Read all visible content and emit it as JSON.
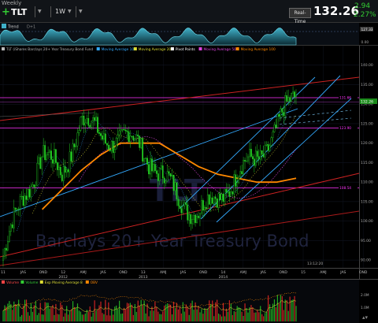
{
  "topbar": {
    "timeframe_label": "Weekly",
    "symbol": "TLT",
    "interval": "1W",
    "realtime_label": "Real-Time",
    "last_price": "132.26",
    "change": "2.94",
    "change_pct": "2.27%"
  },
  "indicator_panel": {
    "legend": "Trend",
    "legend2": "D+1",
    "axis_labels": [
      "127.33",
      "0.00"
    ]
  },
  "price_panel": {
    "legend_items": [
      {
        "text": "TLT (iShares Barclays 20+ Year Treasury Bond Fund",
        "color": "#bbbbbb"
      },
      {
        "text": "Moving Average 10",
        "color": "#33aaff"
      },
      {
        "text": "Moving Average 20",
        "color": "#dddd33"
      },
      {
        "text": "Pivot Points",
        "color": "#ffffff"
      },
      {
        "text": "Moving Average 50",
        "color": "#dd44dd"
      },
      {
        "text": "Moving Average 100",
        "color": "#ff8800"
      }
    ],
    "watermark": "Barclays 20+ Year Treasury Bond",
    "watermark_symbol": "TLT",
    "flag_label": "TLT:132.26",
    "bottom_time_label": "13:12:20",
    "y_ticks": [
      "140.00",
      "135.00",
      "130.00",
      "125.00",
      "120.00",
      "115.00",
      "110.00",
      "105.00",
      "100.00",
      "95.00",
      "90.00"
    ],
    "level_labels": [
      "131.66",
      "123.90",
      "108.54"
    ],
    "level_colors": [
      "#ff33ff",
      "#ff33ff",
      "#ff33ff"
    ]
  },
  "time_axis": {
    "ticks": [
      "11",
      "JAS",
      "OND",
      "12",
      "AMJ",
      "JAS",
      "OND",
      "13",
      "AMJ",
      "JAS",
      "OND",
      "14",
      "AMJ",
      "JAS",
      "OND",
      "15",
      "AMJ",
      "JAS",
      "OND"
    ],
    "sub": [
      "",
      "",
      "",
      "2012",
      "",
      "",
      "",
      "2013",
      "",
      "",
      "",
      "2014",
      "",
      "",
      "",
      "",
      "",
      "",
      ""
    ]
  },
  "volume_panel": {
    "legend_items": [
      {
        "text": "Volume",
        "color": "#ff4444"
      },
      {
        "text": "Volume",
        "color": "#33cc33"
      },
      {
        "text": "Exp Moving Average 8",
        "color": "#dddd33"
      },
      {
        "text": "OBV",
        "color": "#ff8800"
      }
    ],
    "axis_labels": [
      "2.0M",
      "1.0M"
    ]
  },
  "colors": {
    "up_candle": "#22cc22",
    "down_candle": "#22cc22",
    "ma10": "#33aaff",
    "ma20": "#dddd33",
    "ma50": "#dd44dd",
    "ma100": "#ff8800",
    "trend_lines": "#33aaff",
    "red_lines": "#cc2222",
    "horizontal_levels": "#ff33ff"
  },
  "chart_data": {
    "type": "line",
    "title": "TLT (iShares Barclays 20+ Year Treasury Bond Fund)",
    "xlabel": "",
    "ylabel": "",
    "ylim": [
      88,
      146
    ],
    "x": [
      "2011-06",
      "2011-09",
      "2011-12",
      "2012-03",
      "2012-06",
      "2012-09",
      "2012-12",
      "2013-03",
      "2013-06",
      "2013-09",
      "2013-12",
      "2014-03",
      "2014-06",
      "2014-09",
      "2014-12",
      "2015-01"
    ],
    "series": [
      {
        "name": "TLT",
        "values": [
          91,
          106,
          117,
          112,
          126,
          122,
          121,
          120,
          112,
          106,
          102,
          106,
          112,
          116,
          124,
          132.26
        ]
      },
      {
        "name": "Moving Average 100",
        "values": [
          null,
          null,
          103,
          108,
          113,
          117,
          120,
          120,
          120,
          117,
          114,
          112,
          111,
          110,
          110,
          111
        ]
      }
    ],
    "levels": [
      131.66,
      123.9,
      108.54
    ]
  }
}
